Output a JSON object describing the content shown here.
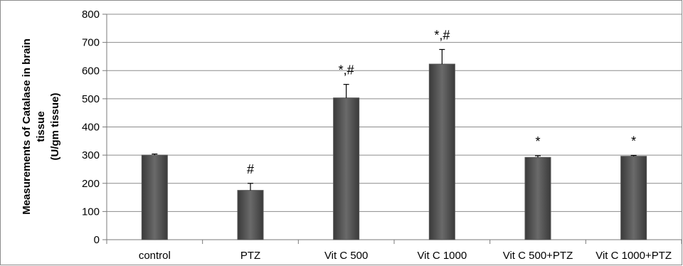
{
  "chart_data": {
    "type": "bar",
    "categories": [
      "control",
      "PTZ",
      "Vit C 500",
      "Vit C 1000",
      "Vit C 500+PTZ",
      "Vit C 1000+PTZ"
    ],
    "values": [
      300,
      175,
      503,
      623,
      292,
      296
    ],
    "errors": [
      4,
      25,
      48,
      52,
      6,
      3
    ],
    "annotations": [
      "",
      "#",
      "*,#",
      "*,#",
      "*",
      "*"
    ],
    "title": "",
    "xlabel": "",
    "ylabel": [
      "Measurements of Catalase in brain",
      "tissue",
      "(U/gm tissue)"
    ],
    "ylim": [
      0,
      800
    ],
    "yticks": [
      0,
      100,
      200,
      300,
      400,
      500,
      600,
      700,
      800
    ],
    "grid": true,
    "legend": "none",
    "bar_color": "#555555",
    "grid_color": "#8c8c8c"
  }
}
